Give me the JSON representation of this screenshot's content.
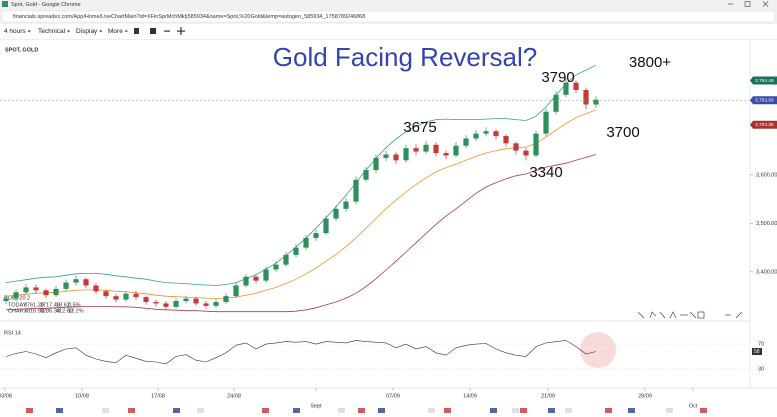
{
  "browser": {
    "title": "Spot, Gold - Google Chrome",
    "url": "financials.spreadex.com/App/Home/LiveChartMain?id=XFinSprMchMkt|585934&name=Spot,%20Gold&temp=autogen_585934_1758789246868"
  },
  "toolbar": [
    "4 hours",
    "Technical",
    "Display",
    "More"
  ],
  "info_table": {
    "rows": [
      [
        "TODAY",
        "3761.20",
        "3717.46",
        "18.62",
        "0.5%"
      ],
      [
        "CHART",
        "3816.90",
        "3286.39",
        "412.60",
        "12.2%"
      ]
    ]
  },
  "chart_data": [
    {
      "type": "candlestick",
      "title": "Gold Facing Reversal?",
      "label": "SPOT, GOLD",
      "overlay_label": "BOLL 20 2",
      "x": [
        0,
        1,
        2,
        3,
        4,
        5,
        6,
        7,
        8,
        9,
        10,
        11,
        12,
        13,
        14,
        15,
        16,
        17,
        18,
        19,
        20,
        21,
        22,
        23,
        24,
        25,
        26,
        27,
        28,
        29,
        30,
        31,
        32,
        33,
        34,
        35,
        36,
        37,
        38,
        39,
        40,
        41,
        42,
        43,
        44,
        45,
        46,
        47,
        48,
        49,
        50,
        51,
        52,
        53,
        54,
        55,
        56,
        57,
        58,
        59
      ],
      "open": [
        3340,
        3345,
        3358,
        3368,
        3362,
        3352,
        3365,
        3378,
        3385,
        3372,
        3360,
        3350,
        3343,
        3355,
        3348,
        3338,
        3335,
        3328,
        3340,
        3345,
        3335,
        3330,
        3338,
        3350,
        3372,
        3390,
        3382,
        3405,
        3415,
        3435,
        3450,
        3470,
        3480,
        3510,
        3530,
        3545,
        3590,
        3610,
        3635,
        3642,
        3630,
        3655,
        3648,
        3662,
        3645,
        3640,
        3660,
        3675,
        3685,
        3690,
        3680,
        3665,
        3650,
        3640,
        3685,
        3730,
        3765,
        3790,
        3775,
        3745
      ],
      "high": [
        3352,
        3364,
        3375,
        3374,
        3366,
        3371,
        3384,
        3392,
        3389,
        3377,
        3364,
        3355,
        3360,
        3361,
        3352,
        3343,
        3340,
        3346,
        3351,
        3349,
        3340,
        3344,
        3356,
        3378,
        3396,
        3395,
        3411,
        3422,
        3441,
        3457,
        3476,
        3487,
        3516,
        3537,
        3552,
        3597,
        3617,
        3642,
        3650,
        3648,
        3662,
        3663,
        3670,
        3667,
        3650,
        3667,
        3682,
        3692,
        3698,
        3695,
        3684,
        3669,
        3655,
        3691,
        3737,
        3772,
        3800,
        3795,
        3780,
        3762
      ],
      "low": [
        3333,
        3340,
        3352,
        3355,
        3346,
        3348,
        3360,
        3372,
        3366,
        3354,
        3344,
        3337,
        3338,
        3342,
        3332,
        3328,
        3322,
        3324,
        3335,
        3330,
        3324,
        3326,
        3334,
        3346,
        3368,
        3376,
        3378,
        3400,
        3410,
        3430,
        3445,
        3464,
        3476,
        3505,
        3524,
        3540,
        3585,
        3604,
        3628,
        3622,
        3625,
        3640,
        3643,
        3638,
        3632,
        3636,
        3655,
        3670,
        3679,
        3673,
        3658,
        3642,
        3630,
        3636,
        3680,
        3725,
        3760,
        3768,
        3735,
        3738
      ],
      "close": [
        3345,
        3358,
        3368,
        3362,
        3352,
        3365,
        3378,
        3385,
        3372,
        3360,
        3350,
        3343,
        3355,
        3348,
        3338,
        3335,
        3328,
        3340,
        3345,
        3335,
        3330,
        3338,
        3350,
        3372,
        3390,
        3382,
        3405,
        3415,
        3435,
        3450,
        3470,
        3480,
        3510,
        3530,
        3545,
        3590,
        3610,
        3635,
        3642,
        3630,
        3655,
        3648,
        3662,
        3645,
        3640,
        3660,
        3675,
        3685,
        3690,
        3680,
        3665,
        3650,
        3640,
        3685,
        3730,
        3765,
        3790,
        3775,
        3745,
        3755
      ],
      "up_color": "#2f8f5b",
      "down_color": "#c23b3b",
      "overlays": [
        {
          "color": "#3a9a9a",
          "values": [
            3378,
            3381,
            3384,
            3387,
            3389,
            3390,
            3393,
            3396,
            3397,
            3397,
            3395,
            3392,
            3390,
            3387,
            3385,
            3381,
            3378,
            3377,
            3376,
            3374,
            3373,
            3372,
            3374,
            3378,
            3386,
            3394,
            3406,
            3418,
            3434,
            3451,
            3470,
            3490,
            3512,
            3534,
            3558,
            3584,
            3610,
            3634,
            3656,
            3674,
            3689,
            3700,
            3709,
            3714,
            3715,
            3714,
            3714,
            3714,
            3715,
            3716,
            3716,
            3714,
            3712,
            3721,
            3740,
            3764,
            3788,
            3806,
            3816,
            3826
          ]
        },
        {
          "color": "#e8962e",
          "values": [
            3350,
            3352,
            3354,
            3356,
            3357,
            3358,
            3360,
            3362,
            3363,
            3363,
            3362,
            3360,
            3359,
            3357,
            3355,
            3352,
            3350,
            3349,
            3348,
            3347,
            3346,
            3345,
            3346,
            3348,
            3352,
            3356,
            3362,
            3368,
            3376,
            3385,
            3396,
            3408,
            3422,
            3436,
            3452,
            3470,
            3490,
            3510,
            3530,
            3548,
            3565,
            3580,
            3594,
            3606,
            3615,
            3622,
            3630,
            3638,
            3645,
            3650,
            3654,
            3656,
            3657,
            3665,
            3678,
            3692,
            3706,
            3718,
            3726,
            3734
          ]
        },
        {
          "color": "#b03a4a",
          "values": [
            3322,
            3323,
            3324,
            3325,
            3325,
            3326,
            3327,
            3328,
            3329,
            3329,
            3329,
            3328,
            3328,
            3327,
            3325,
            3323,
            3322,
            3321,
            3320,
            3320,
            3319,
            3318,
            3318,
            3318,
            3318,
            3318,
            3318,
            3318,
            3318,
            3319,
            3322,
            3326,
            3332,
            3338,
            3346,
            3356,
            3370,
            3386,
            3404,
            3422,
            3441,
            3460,
            3479,
            3498,
            3515,
            3530,
            3546,
            3562,
            3575,
            3584,
            3592,
            3598,
            3602,
            3609,
            3616,
            3620,
            3624,
            3630,
            3636,
            3642
          ]
        }
      ],
      "xlim": [
        -0.6,
        74.4
      ],
      "ylim": [
        3305,
        3878
      ],
      "yticks": [
        {
          "value": 3400,
          "label": "3,400.00"
        },
        {
          "value": 3500,
          "label": "3,500.00"
        },
        {
          "value": 3600,
          "label": "3,600.00"
        }
      ],
      "price_tags": [
        {
          "value": 3794.49,
          "label": "3,794.49",
          "color": "#1e6f5c"
        },
        {
          "value": 3753.83,
          "label": "3,753.83",
          "color": "#3b4ba8"
        },
        {
          "value": 3703.36,
          "label": "3,703.36",
          "color": "#a83232"
        }
      ],
      "annotations": [
        "3790",
        "3800+",
        "3675",
        "3700",
        "3340"
      ]
    },
    {
      "type": "line",
      "label": "RSI 14",
      "color": "#333333",
      "x": [
        0,
        1,
        2,
        3,
        4,
        5,
        6,
        7,
        8,
        9,
        10,
        11,
        12,
        13,
        14,
        15,
        16,
        17,
        18,
        19,
        20,
        21,
        22,
        23,
        24,
        25,
        26,
        27,
        28,
        29,
        30,
        31,
        32,
        33,
        34,
        35,
        36,
        37,
        38,
        39,
        40,
        41,
        42,
        43,
        44,
        45,
        46,
        47,
        48,
        49,
        50,
        51,
        52,
        53,
        54,
        55,
        56,
        57,
        58,
        59
      ],
      "values": [
        50,
        55,
        58,
        54,
        48,
        56,
        62,
        64,
        52,
        46,
        42,
        40,
        52,
        47,
        42,
        41,
        38,
        50,
        53,
        44,
        41,
        48,
        56,
        68,
        72,
        62,
        70,
        72,
        74,
        73,
        74,
        70,
        74,
        73,
        72,
        76,
        74,
        73,
        72,
        64,
        70,
        62,
        66,
        56,
        52,
        64,
        68,
        70,
        71,
        62,
        56,
        52,
        50,
        66,
        72,
        74,
        76,
        66,
        54,
        58
      ],
      "last_tag": 58,
      "xlim": [
        -0.6,
        74.4
      ],
      "ylim": [
        12,
        96
      ],
      "yticks": [
        30,
        70
      ],
      "xticks": [
        {
          "value": -0.1,
          "label": "03/08"
        },
        {
          "value": 7.6,
          "label": "10/08"
        },
        {
          "value": 15.2,
          "label": "17/08"
        },
        {
          "value": 22.8,
          "label": "24/08"
        },
        {
          "value": 31,
          "label": "Sept"
        },
        {
          "value": 38.7,
          "label": "07/09"
        },
        {
          "value": 46.4,
          "label": "14/09"
        },
        {
          "value": 54.2,
          "label": "21/09"
        },
        {
          "value": 63.9,
          "label": "28/09"
        },
        {
          "value": 68.7,
          "label": "Oct"
        }
      ]
    }
  ]
}
